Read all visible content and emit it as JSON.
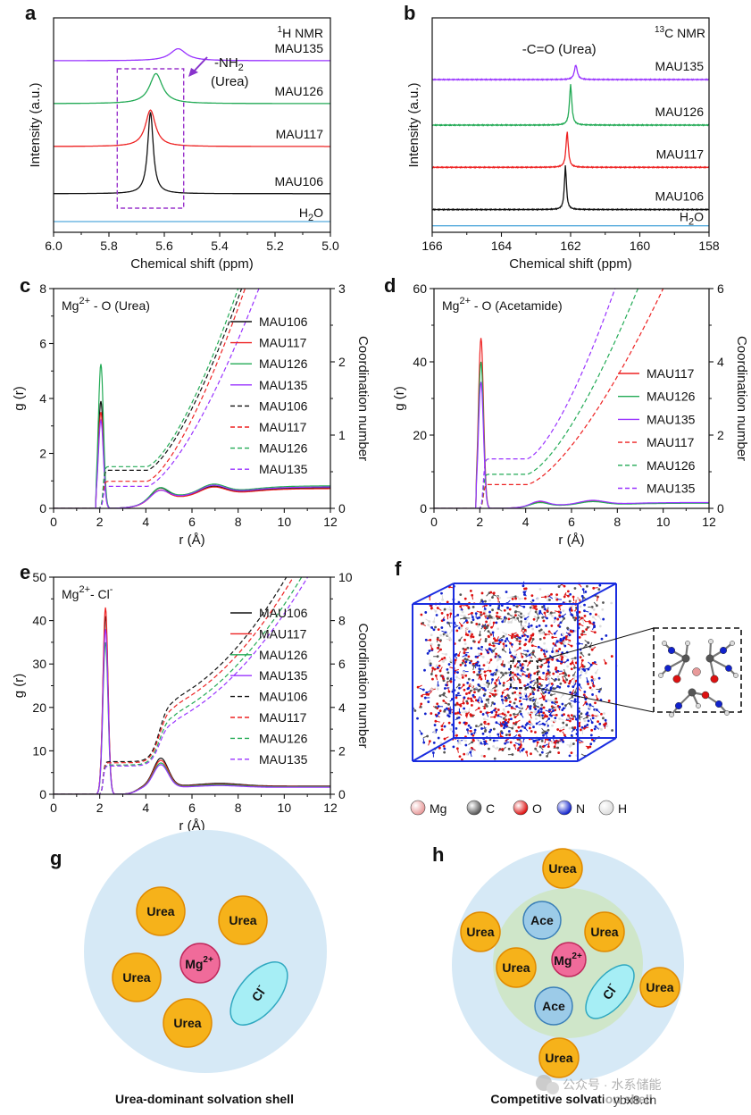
{
  "chart_data": [
    {
      "id": "a",
      "type": "line",
      "panel_label": "a",
      "title": "1H NMR",
      "title_sup": "1",
      "title_main": "H NMR",
      "xlabel": "Chemical shift (ppm)",
      "ylabel": "Intensity (a.u.)",
      "xlim": [
        6.0,
        5.0
      ],
      "xticks": [
        6.0,
        5.8,
        5.6,
        5.4,
        5.2,
        5.0
      ],
      "xtick_labels": [
        "6.0",
        "5.8",
        "5.6",
        "5.4",
        "5.2",
        "5.0"
      ],
      "annotation": {
        "line1": "-NH",
        "sub": "2",
        "line2": "(Urea)"
      },
      "series": [
        {
          "name": "MAU135",
          "color": "#9933ff",
          "baseline": 4.0,
          "peak_x": 5.55,
          "peak_h": 0.28,
          "width": 0.035
        },
        {
          "name": "MAU126",
          "color": "#22aa55",
          "baseline": 3.0,
          "peak_x": 5.63,
          "peak_h": 0.7,
          "width": 0.028
        },
        {
          "name": "MAU117",
          "color": "#ee2222",
          "baseline": 2.0,
          "peak_x": 5.65,
          "peak_h": 0.85,
          "width": 0.022
        },
        {
          "name": "MAU106",
          "color": "#111111",
          "baseline": 0.9,
          "peak_x": 5.65,
          "peak_h": 1.9,
          "width": 0.012
        },
        {
          "name": "H2O",
          "label_main": "H",
          "label_sub": "2",
          "label_end": "O",
          "color": "#55aadd",
          "baseline": 0.25,
          "peak_x": 5.6,
          "peak_h": 0,
          "width": 0.02
        }
      ]
    },
    {
      "id": "b",
      "type": "line",
      "panel_label": "b",
      "title": "13C NMR",
      "title_sup": "13",
      "title_main": "C NMR",
      "xlabel": "Chemical shift (ppm)",
      "ylabel": "Intensity (a.u.)",
      "xlim": [
        166,
        158
      ],
      "xticks": [
        166,
        164,
        162,
        160,
        158
      ],
      "xtick_labels": [
        "166",
        "164",
        "162",
        "160",
        "158"
      ],
      "annotation": {
        "text": "-C=O (Urea)"
      },
      "series": [
        {
          "name": "MAU135",
          "color": "#9933ff",
          "baseline": 4.7,
          "peak_x": 161.85,
          "peak_h": 0.45,
          "width": 0.05
        },
        {
          "name": "MAU126",
          "color": "#22aa55",
          "baseline": 3.3,
          "peak_x": 162.0,
          "peak_h": 1.25,
          "width": 0.04
        },
        {
          "name": "MAU117",
          "color": "#ee2222",
          "baseline": 2.0,
          "peak_x": 162.1,
          "peak_h": 1.1,
          "width": 0.04
        },
        {
          "name": "MAU106",
          "color": "#111111",
          "baseline": 0.7,
          "peak_x": 162.15,
          "peak_h": 1.35,
          "width": 0.035
        },
        {
          "name": "H2O",
          "label_main": "H",
          "label_sub": "2",
          "label_end": "O",
          "color": "#55aadd",
          "baseline": 0.2,
          "peak_x": 162,
          "peak_h": 0,
          "width": 0.03
        }
      ]
    },
    {
      "id": "c",
      "type": "line",
      "panel_label": "c",
      "title": "Mg2+ - O (Urea)",
      "title_main": "Mg",
      "title_sup": "2+",
      "title_end": " - O (Urea)",
      "xlabel": "r (Å)",
      "ylabel": "g (r)",
      "y2label": "Coordination number",
      "xlim": [
        0,
        12
      ],
      "ylim": [
        0,
        8
      ],
      "y2lim": [
        0,
        3
      ],
      "xticks": [
        0,
        2,
        4,
        6,
        8,
        10,
        12
      ],
      "xtick_labels": [
        "0",
        "2",
        "4",
        "6",
        "8",
        "10",
        "12"
      ],
      "yticks": [
        0,
        2,
        4,
        6,
        8
      ],
      "ytick_labels": [
        "0",
        "2",
        "4",
        "6",
        "8"
      ],
      "y2ticks": [
        0,
        1,
        2,
        3
      ],
      "y2tick_labels": [
        "0",
        "1",
        "2",
        "3"
      ],
      "series": [
        {
          "name": "MAU106",
          "style": "solid",
          "color": "#111111",
          "peak": 3.9,
          "p2": 0.38,
          "p3": 0.62,
          "tail": 0.75
        },
        {
          "name": "MAU117",
          "style": "solid",
          "color": "#ee2222",
          "peak": 3.5,
          "p2": 0.32,
          "p3": 0.6,
          "tail": 0.72
        },
        {
          "name": "MAU126",
          "style": "solid",
          "color": "#22aa55",
          "peak": 5.25,
          "p2": 0.36,
          "p3": 0.68,
          "tail": 0.82
        },
        {
          "name": "MAU135",
          "style": "solid",
          "color": "#9933ff",
          "peak": 3.2,
          "p2": 0.28,
          "p3": 0.65,
          "tail": 0.78
        },
        {
          "name": "MAU106",
          "style": "dashed",
          "color": "#111111",
          "plateau": 0.52,
          "cx": 8.15
        },
        {
          "name": "MAU117",
          "style": "dashed",
          "color": "#ee2222",
          "plateau": 0.37,
          "cx": 8.3
        },
        {
          "name": "MAU126",
          "style": "dashed",
          "color": "#22aa55",
          "plateau": 0.57,
          "cx": 8.0
        },
        {
          "name": "MAU135",
          "style": "dashed",
          "color": "#9933ff",
          "plateau": 0.3,
          "cx": 8.9
        }
      ]
    },
    {
      "id": "d",
      "type": "line",
      "panel_label": "d",
      "title": "Mg2+ - O (Acetamide)",
      "title_main": "Mg",
      "title_sup": "2+",
      "title_end": " - O (Acetamide)",
      "xlabel": "r (Å)",
      "ylabel": "g (r)",
      "y2label": "Coordination number",
      "xlim": [
        0,
        12
      ],
      "ylim": [
        0,
        60
      ],
      "y2lim": [
        0,
        6
      ],
      "xticks": [
        0,
        2,
        4,
        6,
        8,
        10,
        12
      ],
      "xtick_labels": [
        "0",
        "2",
        "4",
        "6",
        "8",
        "10",
        "12"
      ],
      "yticks": [
        0,
        20,
        40,
        60
      ],
      "ytick_labels": [
        "0",
        "20",
        "40",
        "60"
      ],
      "y2ticks": [
        0,
        2,
        4,
        6
      ],
      "y2tick_labels": [
        "0",
        "2",
        "4",
        "6"
      ],
      "series": [
        {
          "name": "MAU117",
          "style": "solid",
          "color": "#ee2222",
          "peak": 46.5,
          "p2": 1.0,
          "p3": 1.6,
          "tail": 1.5
        },
        {
          "name": "MAU126",
          "style": "solid",
          "color": "#22aa55",
          "peak": 40.0,
          "p2": 0.9,
          "p3": 1.5,
          "tail": 1.4
        },
        {
          "name": "MAU135",
          "style": "solid",
          "color": "#9933ff",
          "peak": 34.5,
          "p2": 1.2,
          "p3": 1.8,
          "tail": 1.6
        },
        {
          "name": "MAU117",
          "style": "dashed",
          "color": "#ee2222",
          "plateau": 0.65,
          "cx": 10.0
        },
        {
          "name": "MAU126",
          "style": "dashed",
          "color": "#22aa55",
          "plateau": 0.93,
          "cx": 8.9
        },
        {
          "name": "MAU135",
          "style": "dashed",
          "color": "#9933ff",
          "plateau": 1.35,
          "cx": 7.9
        }
      ]
    },
    {
      "id": "e",
      "type": "line",
      "panel_label": "e",
      "title": "Mg2+- Cl-",
      "title_main": "Mg",
      "title_sup": "2+",
      "title_mid": "- Cl",
      "title_sup2": "-",
      "xlabel": "r (Å)",
      "ylabel": "g (r)",
      "y2label": "Coordination number",
      "xlim": [
        0,
        12
      ],
      "ylim": [
        0,
        50
      ],
      "y2lim": [
        0,
        10
      ],
      "xticks": [
        0,
        2,
        4,
        6,
        8,
        10,
        12
      ],
      "xtick_labels": [
        "0",
        "2",
        "4",
        "6",
        "8",
        "10",
        "12"
      ],
      "yticks": [
        0,
        10,
        20,
        30,
        40,
        50
      ],
      "ytick_labels": [
        "0",
        "10",
        "20",
        "30",
        "40",
        "50"
      ],
      "y2ticks": [
        0,
        2,
        4,
        6,
        8,
        10
      ],
      "y2tick_labels": [
        "0",
        "2",
        "4",
        "6",
        "8",
        "10"
      ],
      "series": [
        {
          "name": "MAU106",
          "style": "solid",
          "color": "#111111",
          "peak": 41.0,
          "p2": 8.3,
          "p3": 2.5,
          "tail": 1.9
        },
        {
          "name": "MAU117",
          "style": "solid",
          "color": "#ee2222",
          "peak": 43.0,
          "p2": 7.8,
          "p3": 2.3,
          "tail": 1.8
        },
        {
          "name": "MAU126",
          "style": "solid",
          "color": "#22aa55",
          "peak": 35.0,
          "p2": 7.2,
          "p3": 2.2,
          "tail": 1.7
        },
        {
          "name": "MAU135",
          "style": "solid",
          "color": "#9933ff",
          "peak": 38.0,
          "p2": 6.8,
          "p3": 2.0,
          "tail": 1.6
        },
        {
          "name": "MAU106",
          "style": "dashed",
          "color": "#111111",
          "plateau": 1.5,
          "shoulder": 4.4,
          "cx": 7.5
        },
        {
          "name": "MAU117",
          "style": "dashed",
          "color": "#ee2222",
          "plateau": 1.45,
          "shoulder": 4.1,
          "cx": 7.8
        },
        {
          "name": "MAU126",
          "style": "dashed",
          "color": "#22aa55",
          "plateau": 1.35,
          "shoulder": 3.7,
          "cx": 8.1
        },
        {
          "name": "MAU135",
          "style": "dashed",
          "color": "#9933ff",
          "plateau": 1.3,
          "shoulder": 3.4,
          "cx": 8.3
        }
      ]
    }
  ],
  "panel_f": {
    "label": "f",
    "legend": [
      {
        "name": "Mg",
        "color": "#e89a9a"
      },
      {
        "name": "C",
        "color": "#555555"
      },
      {
        "name": "O",
        "color": "#dd1111"
      },
      {
        "name": "N",
        "color": "#1122cc"
      },
      {
        "name": "H",
        "color": "#dddddd"
      }
    ]
  },
  "panel_g": {
    "label": "g",
    "caption": "Urea-dominant solvation shell",
    "urea_label": "Urea",
    "mg_main": "Mg",
    "mg_sup": "2+",
    "cl_main": "Cl",
    "cl_sup": "-"
  },
  "panel_h": {
    "label": "h",
    "caption": "Competitive solvation shell",
    "urea_label": "Urea",
    "ace_label": "Ace",
    "mg_main": "Mg",
    "mg_sup": "2+",
    "cl_main": "Cl",
    "cl_sup": "-"
  },
  "watermark": {
    "text": "公众号 · 水系储能",
    "site": "ybx8.cn"
  },
  "colors": {
    "urea": "#f6b21a",
    "urea_stroke": "#e08a00",
    "mg": "#f06b9a",
    "mg_stroke": "#c0285c",
    "cl": "#a6eef5",
    "cl_stroke": "#2fa8c0",
    "ace": "#9ccbe8",
    "ace_stroke": "#3a7fb8",
    "shell": "#d6e9f6",
    "inner_shell": "#cfe6c9"
  }
}
